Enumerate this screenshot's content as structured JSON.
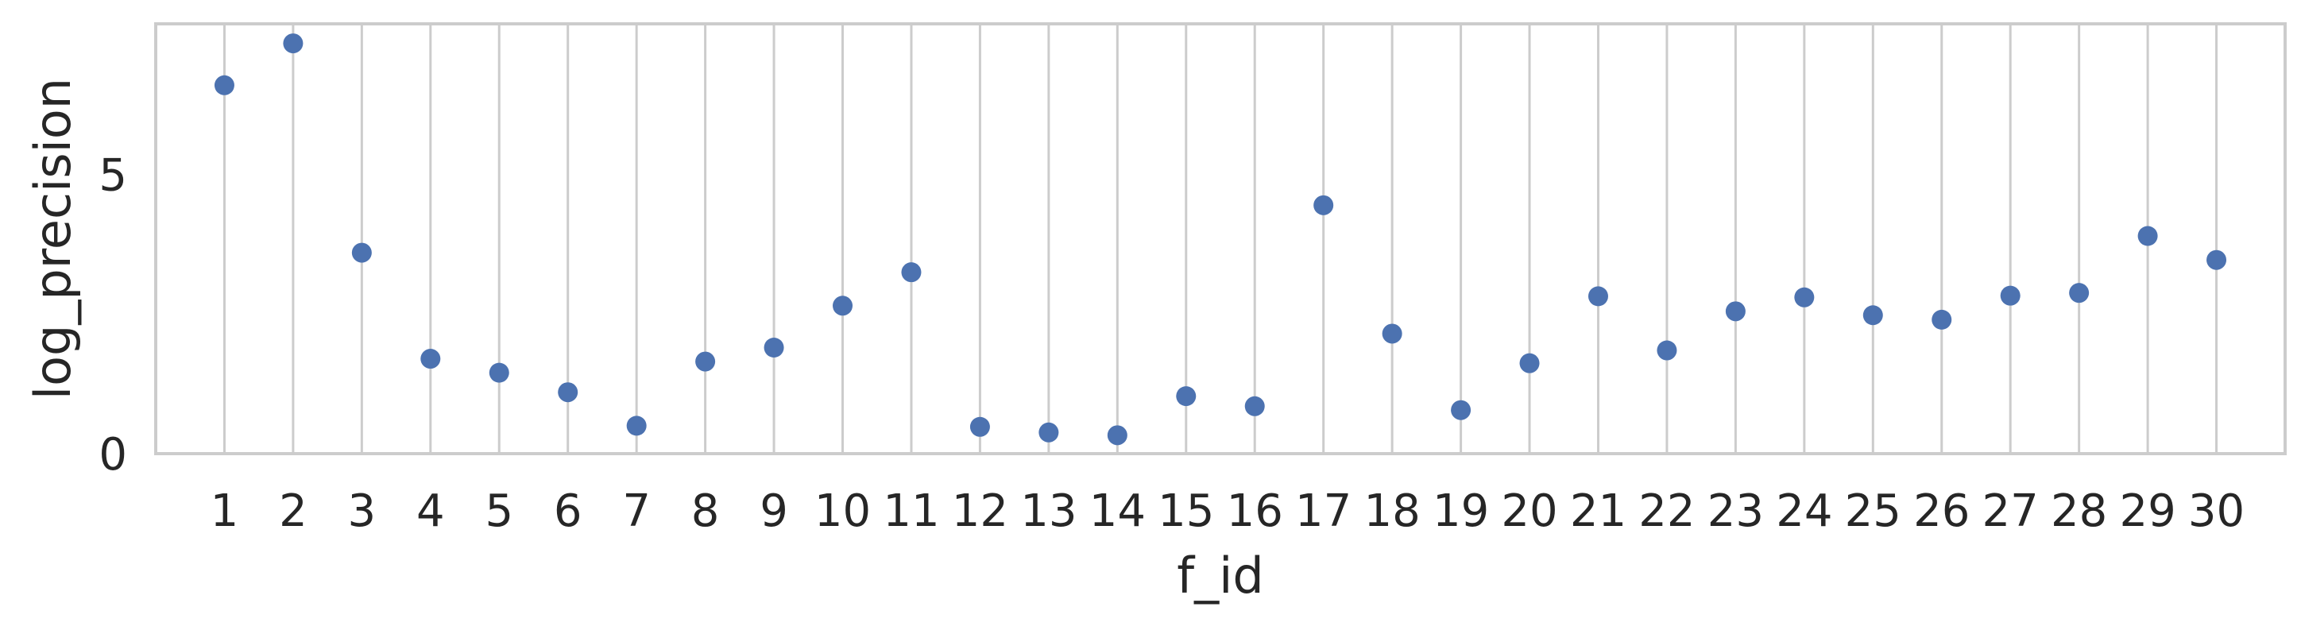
{
  "chart_data": {
    "type": "scatter",
    "title": "",
    "xlabel": "f_id",
    "ylabel": "log_precision",
    "x": [
      1,
      2,
      3,
      4,
      5,
      6,
      7,
      8,
      9,
      10,
      11,
      12,
      13,
      14,
      15,
      16,
      17,
      18,
      19,
      20,
      21,
      22,
      23,
      24,
      25,
      26,
      27,
      28,
      29,
      30
    ],
    "x_ticks": [
      "1",
      "2",
      "3",
      "4",
      "5",
      "6",
      "7",
      "8",
      "9",
      "10",
      "11",
      "12",
      "13",
      "14",
      "15",
      "16",
      "17",
      "18",
      "19",
      "20",
      "21",
      "22",
      "23",
      "24",
      "25",
      "26",
      "27",
      "28",
      "29",
      "30"
    ],
    "y": [
      6.6,
      7.35,
      3.6,
      1.7,
      1.45,
      1.1,
      0.5,
      1.65,
      1.9,
      2.65,
      3.25,
      0.48,
      0.38,
      0.33,
      1.03,
      0.85,
      4.45,
      2.15,
      0.78,
      1.62,
      2.82,
      1.85,
      2.55,
      2.8,
      2.48,
      2.4,
      2.83,
      2.88,
      3.9,
      3.47
    ],
    "y_ticks": [
      0,
      5
    ],
    "xlim": [
      0,
      31
    ],
    "ylim": [
      0,
      7.7
    ],
    "grid": "vertical",
    "marker_color": "#4c72b0",
    "grid_color": "#cccccc",
    "spine_color": "#cccccc"
  }
}
